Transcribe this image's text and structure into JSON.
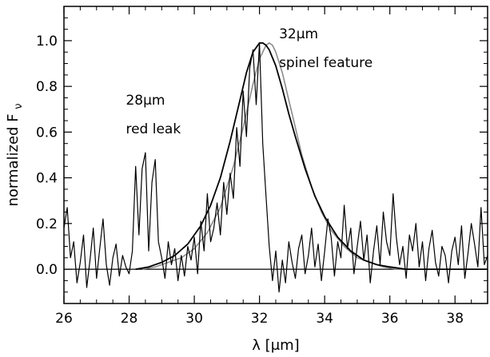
{
  "chart_data": {
    "type": "line",
    "xlabel": "λ [μm]",
    "ylabel": "normalized F",
    "ylabel_sub": "ν",
    "xlim": [
      26,
      39
    ],
    "ylim": [
      -0.15,
      1.15
    ],
    "x_ticks": [
      26,
      28,
      30,
      32,
      34,
      36,
      38
    ],
    "x_tick_labels": [
      "26",
      "28",
      "30",
      "32",
      "34",
      "36",
      "38"
    ],
    "y_ticks": [
      0.0,
      0.2,
      0.4,
      0.6,
      0.8,
      1.0
    ],
    "y_tick_labels": [
      "0.0",
      "0.2",
      "0.4",
      "0.6",
      "0.8",
      "1.0"
    ],
    "grid": false,
    "annotations": [
      {
        "text": "32μm",
        "x": 32.6,
        "y": 1.01
      },
      {
        "text": "spinel feature",
        "x": 32.6,
        "y": 0.885
      },
      {
        "text": "28μm",
        "x": 27.9,
        "y": 0.72
      },
      {
        "text": "red leak",
        "x": 27.9,
        "y": 0.595
      }
    ],
    "series": [
      {
        "style": "noisy-spectrum",
        "color": "#000000",
        "x": [
          26.0,
          26.1,
          26.2,
          26.3,
          26.4,
          26.5,
          26.6,
          26.7,
          26.8,
          26.9,
          27.0,
          27.1,
          27.2,
          27.3,
          27.4,
          27.5,
          27.6,
          27.7,
          27.8,
          27.9,
          28.0,
          28.1,
          28.2,
          28.3,
          28.4,
          28.5,
          28.6,
          28.7,
          28.8,
          28.9,
          29.0,
          29.1,
          29.2,
          29.3,
          29.4,
          29.5,
          29.6,
          29.7,
          29.8,
          29.9,
          30.0,
          30.1,
          30.2,
          30.3,
          30.4,
          30.5,
          30.6,
          30.7,
          30.8,
          30.9,
          31.0,
          31.1,
          31.2,
          31.3,
          31.4,
          31.5,
          31.6,
          31.7,
          31.8,
          31.9,
          32.0,
          32.1,
          32.2,
          32.3,
          32.4,
          32.5,
          32.6,
          32.7,
          32.8,
          32.9,
          33.0,
          33.1,
          33.2,
          33.3,
          33.4,
          33.5,
          33.6,
          33.7,
          33.8,
          33.9,
          34.0,
          34.1,
          34.2,
          34.3,
          34.4,
          34.5,
          34.6,
          34.7,
          34.8,
          34.9,
          35.0,
          35.1,
          35.2,
          35.3,
          35.4,
          35.5,
          35.6,
          35.7,
          35.8,
          35.9,
          36.0,
          36.1,
          36.2,
          36.3,
          36.4,
          36.5,
          36.6,
          36.7,
          36.8,
          36.9,
          37.0,
          37.1,
          37.2,
          37.3,
          37.4,
          37.5,
          37.6,
          37.7,
          37.8,
          37.9,
          38.0,
          38.1,
          38.2,
          38.3,
          38.4,
          38.5,
          38.6,
          38.7,
          38.8,
          38.9,
          39.0
        ],
        "y": [
          0.18,
          0.27,
          0.05,
          0.12,
          -0.06,
          0.03,
          0.15,
          -0.08,
          0.04,
          0.18,
          -0.04,
          0.09,
          0.22,
          0.02,
          -0.07,
          0.05,
          0.11,
          -0.03,
          0.06,
          0.01,
          -0.02,
          0.08,
          0.45,
          0.15,
          0.44,
          0.51,
          0.08,
          0.38,
          0.48,
          0.12,
          0.05,
          -0.04,
          0.12,
          0.02,
          0.09,
          -0.05,
          0.06,
          -0.03,
          0.1,
          0.04,
          0.14,
          -0.02,
          0.21,
          0.08,
          0.33,
          0.12,
          0.18,
          0.29,
          0.15,
          0.38,
          0.24,
          0.42,
          0.31,
          0.62,
          0.45,
          0.78,
          0.58,
          0.88,
          0.96,
          0.72,
          0.99,
          0.55,
          0.32,
          0.1,
          -0.05,
          0.08,
          -0.1,
          0.04,
          -0.06,
          0.12,
          0.03,
          -0.04,
          0.09,
          0.15,
          -0.02,
          0.06,
          0.18,
          0.01,
          0.11,
          -0.05,
          0.08,
          0.22,
          0.14,
          -0.03,
          0.12,
          0.05,
          0.28,
          0.09,
          0.18,
          -0.02,
          0.1,
          0.21,
          0.04,
          0.15,
          -0.06,
          0.08,
          0.19,
          0.02,
          0.25,
          0.12,
          0.06,
          0.33,
          0.14,
          0.02,
          0.1,
          -0.04,
          0.15,
          0.08,
          0.2,
          0.01,
          0.12,
          -0.05,
          0.09,
          0.17,
          0.03,
          -0.03,
          0.1,
          0.06,
          -0.06,
          0.08,
          0.14,
          0.02,
          0.19,
          -0.04,
          0.07,
          0.2,
          0.11,
          0.01,
          0.27,
          0.02,
          0.06
        ]
      },
      {
        "style": "model-black",
        "color": "#000000",
        "x": [
          28.2,
          28.6,
          29.0,
          29.4,
          29.8,
          30.2,
          30.5,
          30.8,
          31.1,
          31.4,
          31.6,
          31.8,
          32.0,
          32.1,
          32.2,
          32.3,
          32.5,
          32.7,
          32.9,
          33.1,
          33.4,
          33.7,
          34.0,
          34.4,
          34.8,
          35.2,
          35.6,
          36.0,
          36.5,
          39.0
        ],
        "y": [
          0.0,
          0.01,
          0.03,
          0.06,
          0.11,
          0.19,
          0.28,
          0.4,
          0.56,
          0.74,
          0.86,
          0.95,
          0.99,
          0.99,
          0.98,
          0.96,
          0.89,
          0.79,
          0.68,
          0.58,
          0.44,
          0.32,
          0.23,
          0.14,
          0.08,
          0.04,
          0.02,
          0.01,
          0.0,
          0.0
        ]
      },
      {
        "style": "model-gray",
        "color": "#8c8c8c",
        "x": [
          28.4,
          28.8,
          29.2,
          29.6,
          30.0,
          30.4,
          30.8,
          31.2,
          31.5,
          31.8,
          32.0,
          32.2,
          32.3,
          32.4,
          32.5,
          32.7,
          32.9,
          33.1,
          33.3,
          33.6,
          33.9,
          34.2,
          34.6,
          35.0,
          35.4,
          35.8,
          36.2,
          36.8
        ],
        "y": [
          0.0,
          0.01,
          0.03,
          0.05,
          0.09,
          0.16,
          0.27,
          0.45,
          0.62,
          0.81,
          0.92,
          0.98,
          0.99,
          0.98,
          0.95,
          0.86,
          0.74,
          0.62,
          0.5,
          0.36,
          0.25,
          0.17,
          0.1,
          0.05,
          0.03,
          0.01,
          0.0,
          0.0
        ]
      },
      {
        "style": "baseline",
        "color": "#000000",
        "x": [
          26,
          39
        ],
        "y": [
          0.0,
          0.0
        ]
      }
    ]
  }
}
